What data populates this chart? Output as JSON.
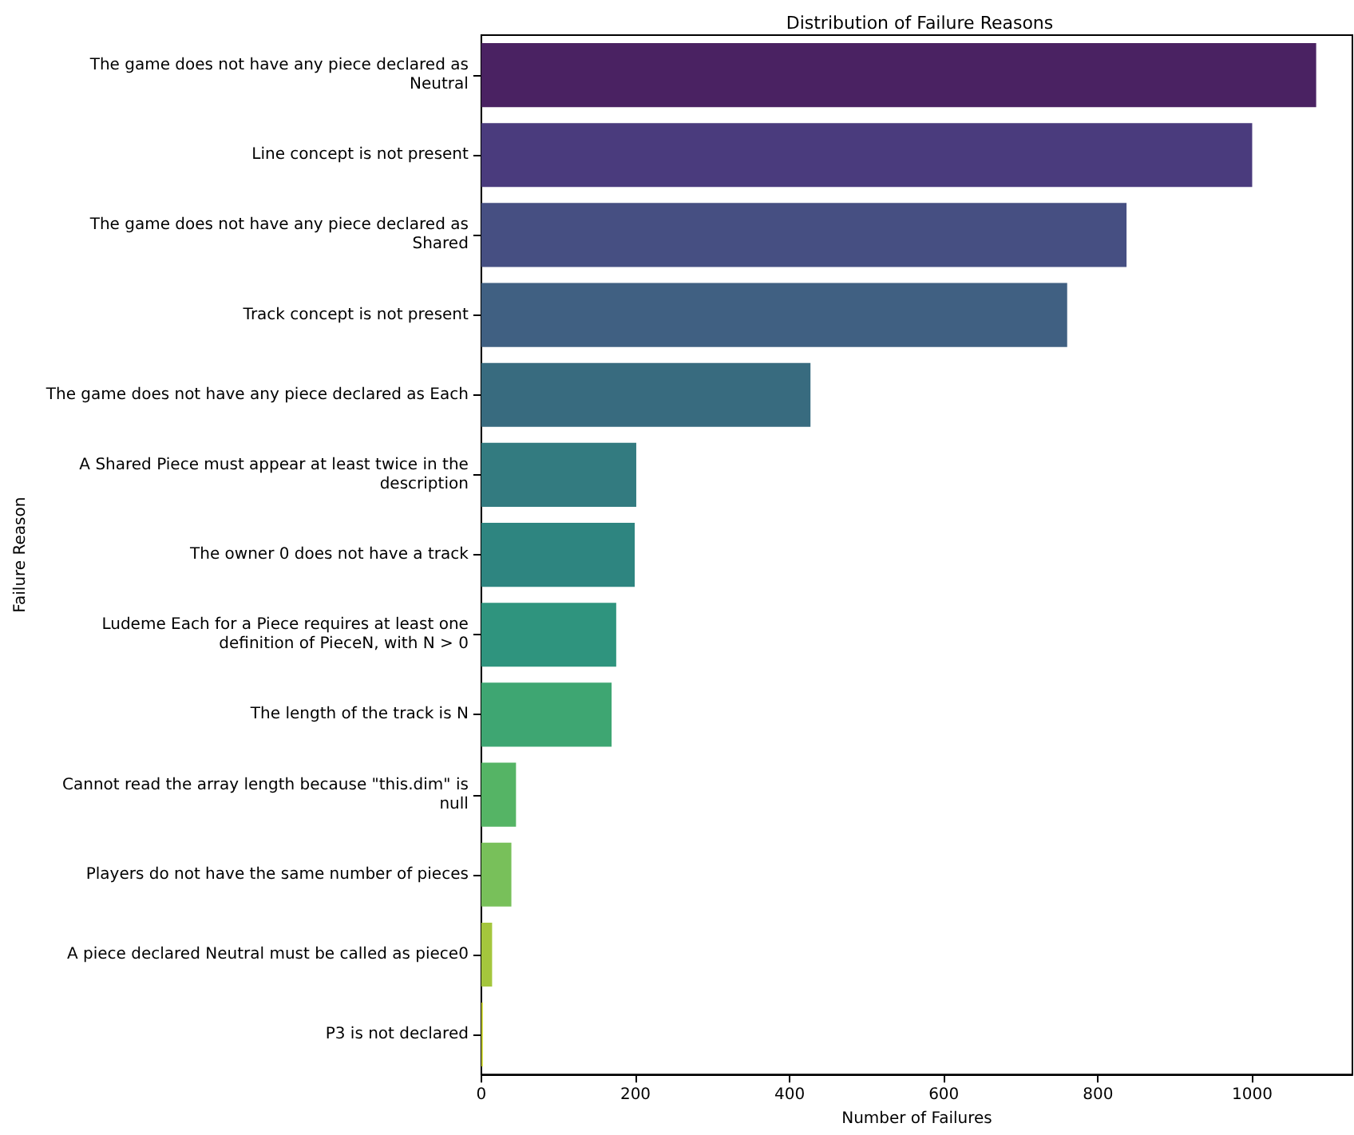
{
  "chart_data": {
    "type": "bar",
    "orientation": "horizontal",
    "title": "Distribution of Failure Reasons",
    "xlabel": "Number of Failures",
    "ylabel": "Failure Reason",
    "categories": [
      "The game does not have any piece declared as\nNeutral",
      "Line concept is not present",
      "The game does not have any piece declared as\nShared",
      "Track concept is not present",
      "The game does not have any piece declared as Each",
      "A Shared Piece must appear at least twice in the\ndescription",
      "The owner 0 does not have a track",
      "Ludeme Each for a Piece requires at least one\ndefinition of PieceN, with N > 0",
      "The length of the track is N",
      "Cannot read the array length because \"this.dim\" is\nnull",
      "Players do not have the same number of pieces",
      "A piece declared Neutral must be called as piece0",
      "P3 is not declared"
    ],
    "values": [
      1083,
      1000,
      837,
      760,
      427,
      201,
      199,
      175,
      169,
      45,
      39,
      14,
      2
    ],
    "colors": [
      "#4a2262",
      "#4a3b7d",
      "#464f82",
      "#406082",
      "#386b7f",
      "#337b80",
      "#2e8580",
      "#2f947e",
      "#3ea672",
      "#55b465",
      "#78c05a",
      "#a4c63d",
      "#c9d22f"
    ],
    "xlim": [
      0,
      1130
    ],
    "xticks": [
      0,
      200,
      400,
      600,
      800,
      1000
    ],
    "grid": false
  }
}
